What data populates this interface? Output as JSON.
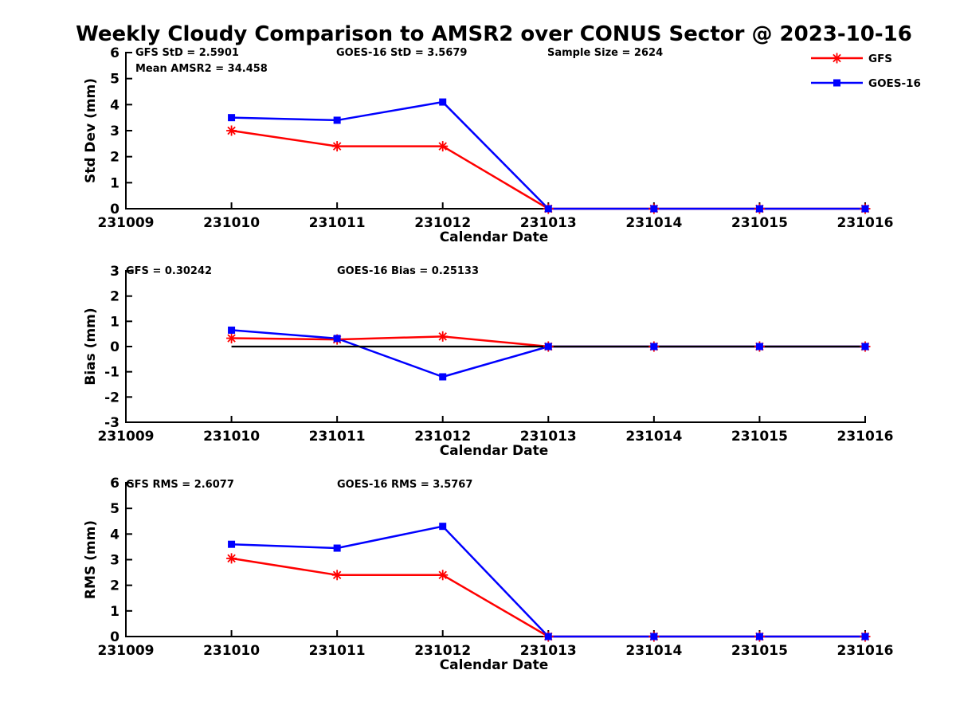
{
  "title": "Weekly Cloudy Comparison to AMSR2 over CONUS Sector @ 2023-10-16",
  "colors": {
    "gfs": "#ff0000",
    "goes16": "#0000ff",
    "axis": "#000000",
    "zero_line": "#000000",
    "background": "#ffffff"
  },
  "legend": {
    "position": "top-right",
    "items": [
      {
        "label": "GFS",
        "color": "#ff0000",
        "marker": "asterisk"
      },
      {
        "label": "GOES-16",
        "color": "#0000ff",
        "marker": "square"
      }
    ]
  },
  "x_axis": {
    "label": "Calendar Date",
    "tick_labels": [
      "231009",
      "231010",
      "231011",
      "231012",
      "231013",
      "231014",
      "231015",
      "231016"
    ]
  },
  "chart_data": [
    {
      "type": "line",
      "name": "std-dev-panel",
      "ylabel": "Std Dev (mm)",
      "xlabel": "Calendar Date",
      "ylim": [
        0,
        6
      ],
      "yticks": [
        0,
        1,
        2,
        3,
        4,
        5,
        6
      ],
      "grid": false,
      "zero_line": false,
      "x_categories": [
        "231010",
        "231011",
        "231012",
        "231013",
        "231014",
        "231015",
        "231016"
      ],
      "series": [
        {
          "name": "GFS",
          "color": "#ff0000",
          "marker": "asterisk",
          "values": [
            3.0,
            2.4,
            2.4,
            0,
            0,
            0,
            0
          ]
        },
        {
          "name": "GOES-16",
          "color": "#0000ff",
          "marker": "square",
          "values": [
            3.5,
            3.4,
            4.1,
            0,
            0,
            0,
            0
          ]
        }
      ],
      "annotations": [
        {
          "text": "GFS StD = 2.5901"
        },
        {
          "text": "Mean AMSR2 = 34.458"
        },
        {
          "text": "GOES-16 StD = 3.5679"
        },
        {
          "text": "Sample Size = 2624"
        }
      ]
    },
    {
      "type": "line",
      "name": "bias-panel",
      "ylabel": "Bias (mm)",
      "xlabel": "Calendar Date",
      "ylim": [
        -3,
        3
      ],
      "yticks": [
        -3,
        -2,
        -1,
        0,
        1,
        2,
        3
      ],
      "grid": false,
      "zero_line": true,
      "x_categories": [
        "231010",
        "231011",
        "231012",
        "231013",
        "231014",
        "231015",
        "231016"
      ],
      "series": [
        {
          "name": "GFS",
          "color": "#ff0000",
          "marker": "asterisk",
          "values": [
            0.33,
            0.28,
            0.4,
            0,
            0,
            0,
            0
          ]
        },
        {
          "name": "GOES-16",
          "color": "#0000ff",
          "marker": "square",
          "values": [
            0.65,
            0.32,
            -1.2,
            0,
            0,
            0,
            0
          ]
        }
      ],
      "annotations": [
        {
          "text": "GFS = 0.30242"
        },
        {
          "text": "GOES-16 Bias  = 0.25133"
        }
      ]
    },
    {
      "type": "line",
      "name": "rms-panel",
      "ylabel": "RMS (mm)",
      "xlabel": "Calendar Date",
      "ylim": [
        0,
        6
      ],
      "yticks": [
        0,
        1,
        2,
        3,
        4,
        5,
        6
      ],
      "grid": false,
      "zero_line": false,
      "x_categories": [
        "231010",
        "231011",
        "231012",
        "231013",
        "231014",
        "231015",
        "231016"
      ],
      "series": [
        {
          "name": "GFS",
          "color": "#ff0000",
          "marker": "asterisk",
          "values": [
            3.05,
            2.4,
            2.4,
            0,
            0,
            0,
            0
          ]
        },
        {
          "name": "GOES-16",
          "color": "#0000ff",
          "marker": "square",
          "values": [
            3.6,
            3.45,
            4.3,
            0,
            0,
            0,
            0
          ]
        }
      ],
      "annotations": [
        {
          "text": "GFS RMS = 2.6077"
        },
        {
          "text": "GOES-16 RMS = 3.5767"
        }
      ]
    }
  ]
}
